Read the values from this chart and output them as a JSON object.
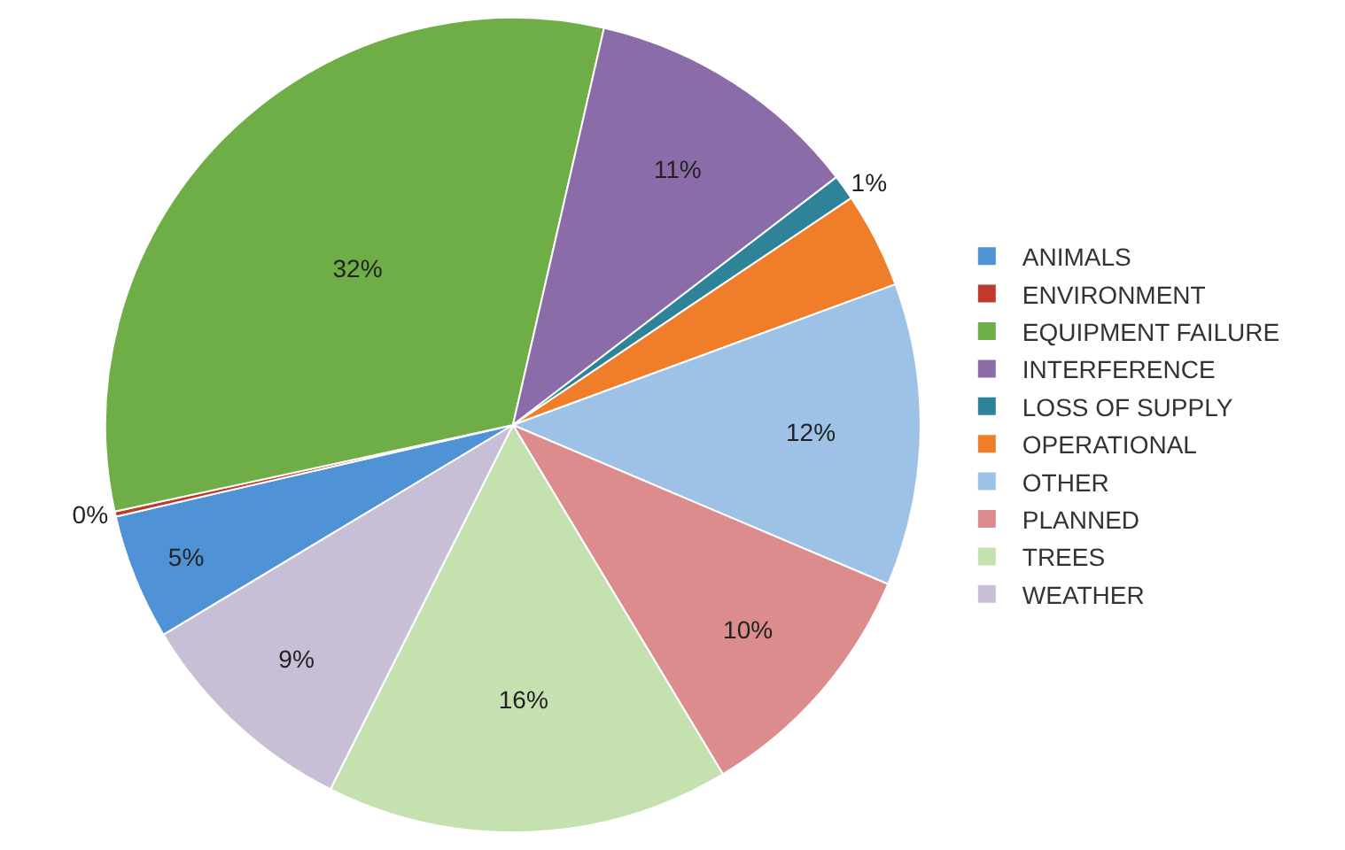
{
  "chart_data": {
    "type": "pie",
    "categories": [
      "ANIMALS",
      "ENVIRONMENT",
      "EQUIPMENT FAILURE",
      "INTERFERENCE",
      "LOSS OF SUPPLY",
      "OPERATIONAL",
      "OTHER",
      "PLANNED",
      "TREES",
      "WEATHER"
    ],
    "values": [
      5,
      0.2,
      32,
      11,
      1,
      3.8,
      12,
      10,
      16,
      9
    ],
    "value_labels": [
      "5%",
      "0%",
      "32%",
      "11%",
      "1%",
      null,
      "12%",
      "10%",
      "16%",
      "9%"
    ],
    "colors": [
      "#4f93d6",
      "#c0392b",
      "#6fad46",
      "#8a6ca8",
      "#2f8399",
      "#ef7d2a",
      "#9ec1e6",
      "#dc8c8c",
      "#c5e1b0",
      "#c8bfd6"
    ],
    "legend": "right"
  }
}
